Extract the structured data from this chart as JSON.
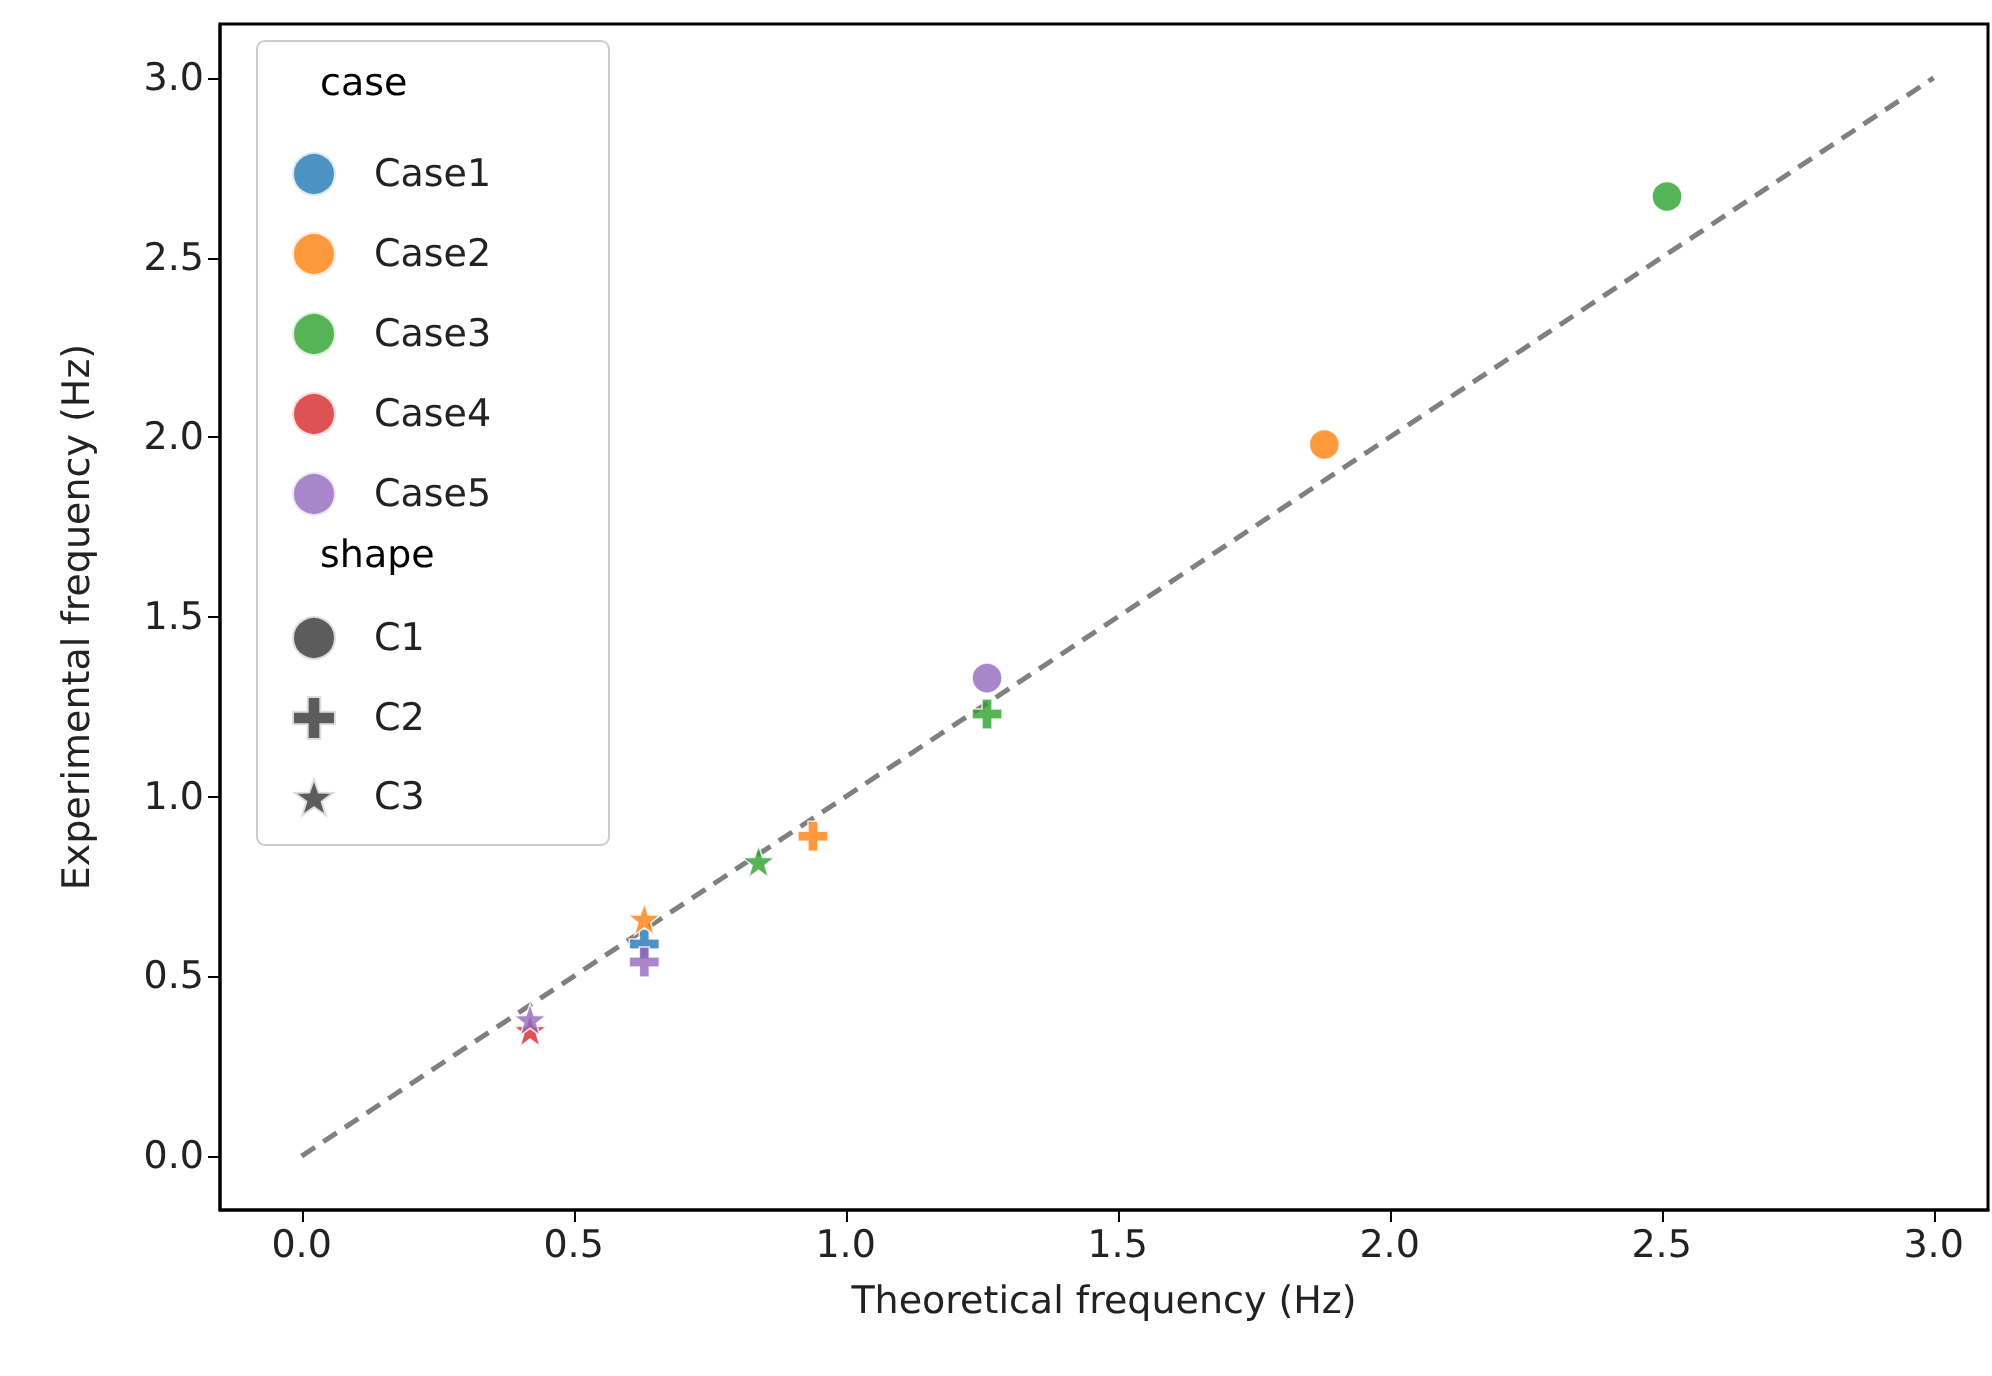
{
  "chart_data": {
    "type": "scatter",
    "xlabel": "Theoretical frequency (Hz)",
    "ylabel": "Experimental frequency (Hz)",
    "legend_title": "case",
    "annotations": [
      "shape"
    ],
    "xlim": [
      -0.15,
      3.1
    ],
    "xticks": [
      {
        "value": 0,
        "label": "0.0"
      },
      0.5,
      {
        "value": 1,
        "label": "1.0"
      },
      1.5,
      {
        "value": 2,
        "label": "2.0"
      },
      2.5,
      {
        "value": 3,
        "label": "3.0"
      }
    ],
    "ylim": [
      -0.15,
      3.15
    ],
    "yticks": [
      {
        "value": 0,
        "label": "0.0"
      },
      0.5,
      {
        "value": 1,
        "label": "1.0"
      },
      1.5,
      {
        "value": 2,
        "label": "2.0"
      },
      2.5,
      {
        "value": 3,
        "label": "3.0"
      }
    ],
    "grid": false,
    "legend": "top left",
    "series": [
      {
        "type": "line",
        "color": "#808080",
        "line_style": "dashed",
        "marker": "none",
        "x": [
          0,
          3
        ],
        "values": [
          0,
          3
        ]
      },
      {
        "name": "Case1",
        "color": "#1f77b4",
        "marker": [
          "cross"
        ],
        "x": [
          0.63
        ],
        "values": [
          0.59
        ]
      },
      {
        "name": "Case2",
        "color": "#ff7f0e",
        "marker": [
          "circle",
          "cross",
          "star"
        ],
        "x": [
          1.88,
          0.94,
          0.63
        ],
        "values": [
          1.98,
          0.89,
          0.66
        ]
      },
      {
        "name": "Case3",
        "color": "#2ca02c",
        "marker": [
          "circle",
          "cross",
          "star"
        ],
        "x": [
          2.51,
          1.26,
          0.84
        ],
        "values": [
          2.67,
          1.23,
          0.82
        ]
      },
      {
        "name": "Case4",
        "color": "#d62728",
        "marker": [
          "star"
        ],
        "x": [
          0.42
        ],
        "values": [
          0.35
        ]
      },
      {
        "name": "Case5",
        "color": "#9467bd",
        "marker": [
          "circle",
          "cross",
          "star"
        ],
        "x": [
          1.26,
          0.63,
          0.42
        ],
        "values": [
          1.33,
          0.54,
          0.38
        ]
      },
      {
        "name": "C1",
        "color": "#333333",
        "marker": "circle"
      },
      {
        "name": "C2",
        "color": "#333333",
        "marker": "cross"
      },
      {
        "name": "C3",
        "color": "#333333",
        "marker": "star"
      }
    ]
  }
}
